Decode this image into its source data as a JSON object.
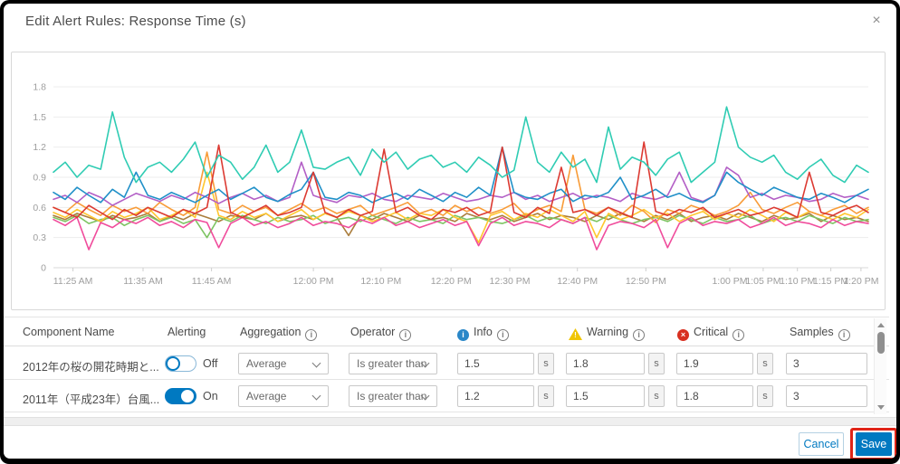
{
  "dialog": {
    "title": "Edit Alert Rules: Response Time (s)",
    "close_glyph": "×"
  },
  "chart_data": {
    "type": "line",
    "ylim": [
      0,
      1.8
    ],
    "yticks": [
      0,
      0.3,
      0.6,
      0.9,
      1.2,
      1.5,
      1.8
    ],
    "ytick_labels": [
      "0",
      "0.3",
      "0.6",
      "0.9",
      "1.2",
      "1.5",
      "1.8"
    ],
    "grid": true,
    "legend": "none",
    "xticks": [
      {
        "label": "11:25 AM",
        "pos": 0.024
      },
      {
        "label": "11:35 AM",
        "pos": 0.11
      },
      {
        "label": "11:45 AM",
        "pos": 0.194
      },
      {
        "label": "12:00 PM",
        "pos": 0.319
      },
      {
        "label": "12:10 PM",
        "pos": 0.402
      },
      {
        "label": "12:20 PM",
        "pos": 0.488
      },
      {
        "label": "12:30 PM",
        "pos": 0.56
      },
      {
        "label": "12:40 PM",
        "pos": 0.643
      },
      {
        "label": "12:50 PM",
        "pos": 0.727
      },
      {
        "label": "1:00 PM",
        "pos": 0.83
      },
      {
        "label": "1:05 PM",
        "pos": 0.871
      },
      {
        "label": "1:10 PM",
        "pos": 0.913
      },
      {
        "label": "1:15 PM",
        "pos": 0.954
      },
      {
        "label": "1:20 PM",
        "pos": 0.991
      }
    ],
    "series": [
      {
        "name": "brown",
        "color": "#aa7d3c",
        "values": [
          0.52,
          0.48,
          0.54,
          0.5,
          0.46,
          0.52,
          0.48,
          0.5,
          0.54,
          0.46,
          0.52,
          0.48,
          0.54,
          0.5,
          0.46,
          0.52,
          0.5,
          0.48,
          0.54,
          0.46,
          0.5,
          0.52,
          0.48,
          0.54,
          0.5,
          0.32,
          0.52,
          0.48,
          0.54,
          0.5,
          0.46,
          0.52,
          0.48,
          0.5,
          0.46,
          0.54,
          0.5,
          0.48,
          0.52,
          0.46,
          0.5,
          0.54,
          0.48,
          0.52,
          0.5,
          0.46,
          0.52,
          0.48,
          0.54,
          0.5,
          0.46,
          0.52,
          0.48,
          0.54,
          0.46,
          0.5,
          0.52,
          0.48,
          0.54,
          0.5,
          0.46,
          0.52,
          0.48,
          0.5,
          0.54,
          0.46,
          0.52,
          0.48,
          0.5,
          0.46
        ]
      },
      {
        "name": "green",
        "color": "#7dc462",
        "values": [
          0.5,
          0.46,
          0.52,
          0.44,
          0.48,
          0.5,
          0.42,
          0.48,
          0.52,
          0.46,
          0.5,
          0.44,
          0.48,
          0.3,
          0.5,
          0.46,
          0.52,
          0.48,
          0.44,
          0.5,
          0.46,
          0.48,
          0.52,
          0.44,
          0.48,
          0.5,
          0.46,
          0.52,
          0.48,
          0.44,
          0.5,
          0.46,
          0.48,
          0.44,
          0.52,
          0.48,
          0.5,
          0.46,
          0.44,
          0.48,
          0.52,
          0.46,
          0.5,
          0.48,
          0.44,
          0.5,
          0.46,
          0.52,
          0.48,
          0.44,
          0.48,
          0.5,
          0.46,
          0.52,
          0.48,
          0.44,
          0.5,
          0.46,
          0.48,
          0.52,
          0.44,
          0.48,
          0.5,
          0.46,
          0.52,
          0.48,
          0.44,
          0.5,
          0.46,
          0.48
        ]
      },
      {
        "name": "yellow",
        "color": "#ffc62e",
        "values": [
          0.55,
          0.5,
          0.58,
          0.52,
          0.46,
          0.56,
          0.5,
          0.54,
          0.6,
          0.48,
          0.52,
          0.58,
          0.5,
          0.95,
          0.52,
          0.48,
          0.56,
          0.5,
          0.54,
          0.46,
          0.52,
          0.58,
          0.48,
          0.54,
          0.5,
          0.56,
          0.52,
          0.46,
          0.5,
          0.55,
          0.48,
          0.54,
          0.52,
          0.58,
          0.5,
          0.46,
          0.25,
          0.52,
          0.56,
          0.48,
          0.54,
          0.5,
          0.58,
          0.52,
          0.46,
          0.56,
          0.3,
          0.54,
          0.48,
          0.52,
          0.58,
          0.5,
          0.54,
          0.46,
          0.52,
          0.56,
          0.48,
          0.54,
          0.5,
          0.58,
          0.52,
          0.46,
          0.55,
          0.5,
          0.56,
          0.52,
          0.48,
          0.54,
          0.5,
          0.58
        ]
      },
      {
        "name": "orange",
        "color": "#f89c38",
        "values": [
          0.6,
          0.55,
          0.65,
          0.58,
          0.52,
          0.62,
          0.56,
          0.6,
          0.54,
          0.65,
          0.58,
          0.52,
          0.6,
          1.15,
          0.58,
          0.54,
          0.62,
          0.56,
          0.6,
          0.52,
          0.58,
          0.64,
          0.56,
          0.6,
          0.54,
          0.58,
          0.62,
          0.52,
          0.56,
          0.6,
          0.65,
          0.54,
          0.58,
          0.52,
          0.62,
          0.56,
          0.6,
          0.54,
          0.58,
          0.64,
          0.52,
          0.58,
          0.62,
          0.56,
          1.12,
          0.58,
          0.54,
          0.6,
          0.52,
          0.62,
          0.56,
          0.45,
          0.58,
          0.54,
          0.62,
          0.58,
          0.52,
          0.56,
          0.62,
          0.75,
          0.58,
          0.54,
          0.6,
          0.65,
          0.56,
          0.52,
          0.58,
          0.62,
          0.54,
          0.6
        ]
      },
      {
        "name": "pink",
        "color": "#f04c9c",
        "values": [
          0.48,
          0.42,
          0.5,
          0.18,
          0.45,
          0.4,
          0.48,
          0.44,
          0.5,
          0.42,
          0.46,
          0.4,
          0.48,
          0.45,
          0.2,
          0.44,
          0.5,
          0.42,
          0.46,
          0.4,
          0.44,
          0.5,
          0.42,
          0.46,
          0.44,
          0.4,
          0.48,
          0.44,
          0.5,
          0.42,
          0.46,
          0.4,
          0.44,
          0.48,
          0.42,
          0.46,
          0.22,
          0.44,
          0.5,
          0.42,
          0.46,
          0.44,
          0.4,
          0.48,
          0.44,
          0.5,
          0.18,
          0.42,
          0.46,
          0.44,
          0.4,
          0.48,
          0.2,
          0.44,
          0.5,
          0.42,
          0.46,
          0.44,
          0.48,
          0.4,
          0.44,
          0.5,
          0.42,
          0.46,
          0.44,
          0.4,
          0.48,
          0.42,
          0.46,
          0.44
        ]
      },
      {
        "name": "purple",
        "color": "#b35fc6",
        "values": [
          0.68,
          0.72,
          0.65,
          0.75,
          0.7,
          0.62,
          0.68,
          0.74,
          0.7,
          0.66,
          0.72,
          0.68,
          0.75,
          0.7,
          0.64,
          0.7,
          0.74,
          0.68,
          0.72,
          0.66,
          0.7,
          1.05,
          0.72,
          0.68,
          0.65,
          0.72,
          0.7,
          0.74,
          0.68,
          0.66,
          0.72,
          0.7,
          0.68,
          0.74,
          0.7,
          0.66,
          0.68,
          0.72,
          0.7,
          0.75,
          0.68,
          0.72,
          0.66,
          0.7,
          0.74,
          0.68,
          0.72,
          0.7,
          0.66,
          0.74,
          0.7,
          0.68,
          0.72,
          0.95,
          0.7,
          0.66,
          0.72,
          1.0,
          0.92,
          0.7,
          0.74,
          0.68,
          0.72,
          0.7,
          0.66,
          0.68,
          0.74,
          0.7,
          0.72,
          0.68
        ]
      },
      {
        "name": "blue",
        "color": "#2090c8",
        "values": [
          0.75,
          0.68,
          0.8,
          0.72,
          0.65,
          0.78,
          0.7,
          0.95,
          0.72,
          0.68,
          0.75,
          0.7,
          0.65,
          0.72,
          0.78,
          0.68,
          0.74,
          0.8,
          0.7,
          0.66,
          0.73,
          0.78,
          0.95,
          0.7,
          0.68,
          0.75,
          0.72,
          0.65,
          0.7,
          0.74,
          0.68,
          0.78,
          0.72,
          0.66,
          0.75,
          0.7,
          0.8,
          0.72,
          1.2,
          0.75,
          0.7,
          0.68,
          0.74,
          0.78,
          0.66,
          0.72,
          0.7,
          0.75,
          0.9,
          0.68,
          0.72,
          0.78,
          0.7,
          0.74,
          0.68,
          0.65,
          0.72,
          0.95,
          0.85,
          0.78,
          0.72,
          0.8,
          0.75,
          0.7,
          0.68,
          0.74,
          0.7,
          0.65,
          0.72,
          0.78
        ]
      },
      {
        "name": "red",
        "color": "#dc3a32",
        "values": [
          0.6,
          0.55,
          0.5,
          0.62,
          0.55,
          0.48,
          0.58,
          0.52,
          0.6,
          0.55,
          0.5,
          0.58,
          0.54,
          0.6,
          1.22,
          0.55,
          0.5,
          0.56,
          0.62,
          0.52,
          0.55,
          0.6,
          0.95,
          0.55,
          0.5,
          0.58,
          0.52,
          0.56,
          1.18,
          0.55,
          0.6,
          0.52,
          0.48,
          0.58,
          0.55,
          0.6,
          0.52,
          0.56,
          1.2,
          0.55,
          0.5,
          0.6,
          0.54,
          1.0,
          0.55,
          0.58,
          0.52,
          0.6,
          0.55,
          0.5,
          1.25,
          0.56,
          0.52,
          0.58,
          0.55,
          0.6,
          0.5,
          0.54,
          0.58,
          0.52,
          0.55,
          0.6,
          0.56,
          0.5,
          0.95,
          0.55,
          0.52,
          0.58,
          0.62,
          0.55
        ]
      },
      {
        "name": "teal",
        "color": "#2fccb3",
        "values": [
          0.95,
          1.05,
          0.9,
          1.02,
          0.98,
          1.55,
          1.1,
          0.85,
          1.0,
          1.05,
          0.95,
          1.08,
          1.25,
          0.9,
          1.12,
          1.05,
          0.88,
          1.0,
          1.22,
          0.95,
          1.05,
          1.37,
          1.0,
          0.98,
          1.05,
          1.1,
          0.92,
          1.18,
          1.05,
          1.15,
          0.98,
          1.08,
          1.12,
          1.0,
          1.05,
          0.95,
          1.1,
          1.02,
          0.9,
          0.97,
          1.5,
          1.05,
          0.95,
          1.15,
          1.0,
          1.08,
          0.85,
          1.4,
          0.98,
          1.1,
          1.05,
          0.92,
          1.08,
          1.15,
          0.85,
          0.95,
          1.05,
          1.6,
          1.2,
          1.1,
          1.05,
          1.12,
          0.95,
          0.88,
          1.0,
          1.08,
          0.92,
          0.85,
          1.02,
          0.95
        ]
      }
    ]
  },
  "table": {
    "headers": {
      "component_name": "Component Name",
      "alerting": "Alerting",
      "aggregation": "Aggregation",
      "operator": "Operator",
      "info": "Info",
      "warning": "Warning",
      "critical": "Critical",
      "samples": "Samples"
    },
    "badges": {
      "info_glyph": "i",
      "warning_glyph": "!",
      "critical_glyph": "×",
      "tooltip_glyph": "i"
    },
    "units_suffix": "s",
    "rows": [
      {
        "component_name": "2012年の桜の開花時期と...",
        "alerting_on": false,
        "alerting_label": "Off",
        "aggregation": "Average",
        "operator": "Is greater than",
        "info_value": "1.5",
        "warning_value": "1.8",
        "critical_value": "1.9",
        "samples": "3"
      },
      {
        "component_name": "2011年（平成23年）台風...",
        "alerting_on": true,
        "alerting_label": "On",
        "aggregation": "Average",
        "operator": "Is greater than",
        "info_value": "1.2",
        "warning_value": "1.5",
        "critical_value": "1.8",
        "samples": "3"
      }
    ]
  },
  "footer": {
    "cancel_label": "Cancel",
    "save_label": "Save"
  },
  "colors": {
    "accent_blue": "#0079c1",
    "annotation_red": "#e02417",
    "info_blue": "#2a87c8",
    "warning_yellow": "#f0c500",
    "critical_red": "#d83020"
  }
}
